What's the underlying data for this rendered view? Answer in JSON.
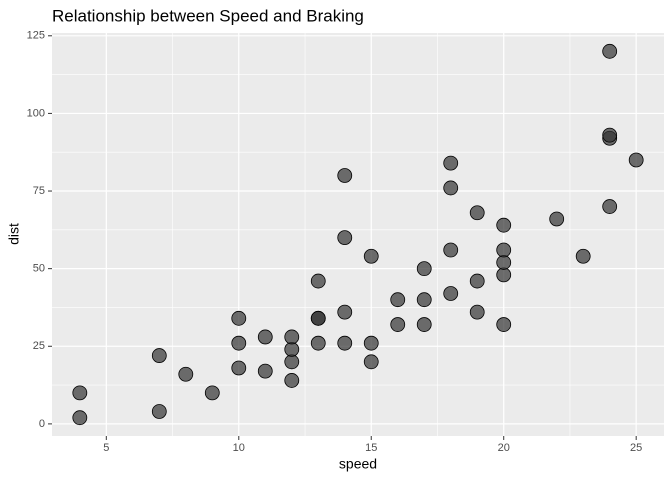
{
  "chart_data": {
    "type": "scatter",
    "title": "Relationship between Speed and Braking",
    "x_label": "speed",
    "y_label": "dist",
    "x": [
      4,
      4,
      7,
      7,
      8,
      9,
      10,
      10,
      10,
      11,
      11,
      12,
      12,
      12,
      12,
      13,
      13,
      13,
      13,
      14,
      14,
      14,
      14,
      15,
      15,
      15,
      16,
      16,
      17,
      17,
      17,
      18,
      18,
      18,
      18,
      19,
      19,
      19,
      20,
      20,
      20,
      20,
      20,
      22,
      23,
      24,
      24,
      24,
      24,
      25
    ],
    "values": [
      2,
      10,
      4,
      22,
      16,
      10,
      18,
      26,
      34,
      17,
      28,
      14,
      20,
      24,
      28,
      26,
      34,
      34,
      46,
      26,
      36,
      60,
      80,
      20,
      26,
      54,
      32,
      40,
      32,
      40,
      50,
      42,
      56,
      76,
      84,
      36,
      46,
      68,
      32,
      48,
      52,
      56,
      64,
      66,
      54,
      70,
      92,
      93,
      120,
      85
    ],
    "color": "#333333",
    "xlim": [
      2.95,
      26.05
    ],
    "xticks": [
      5,
      10,
      15,
      20,
      25
    ],
    "ylim": [
      -3.9,
      125.9
    ],
    "yticks": [
      0,
      25,
      50,
      75,
      100,
      125
    ],
    "grid": true
  }
}
